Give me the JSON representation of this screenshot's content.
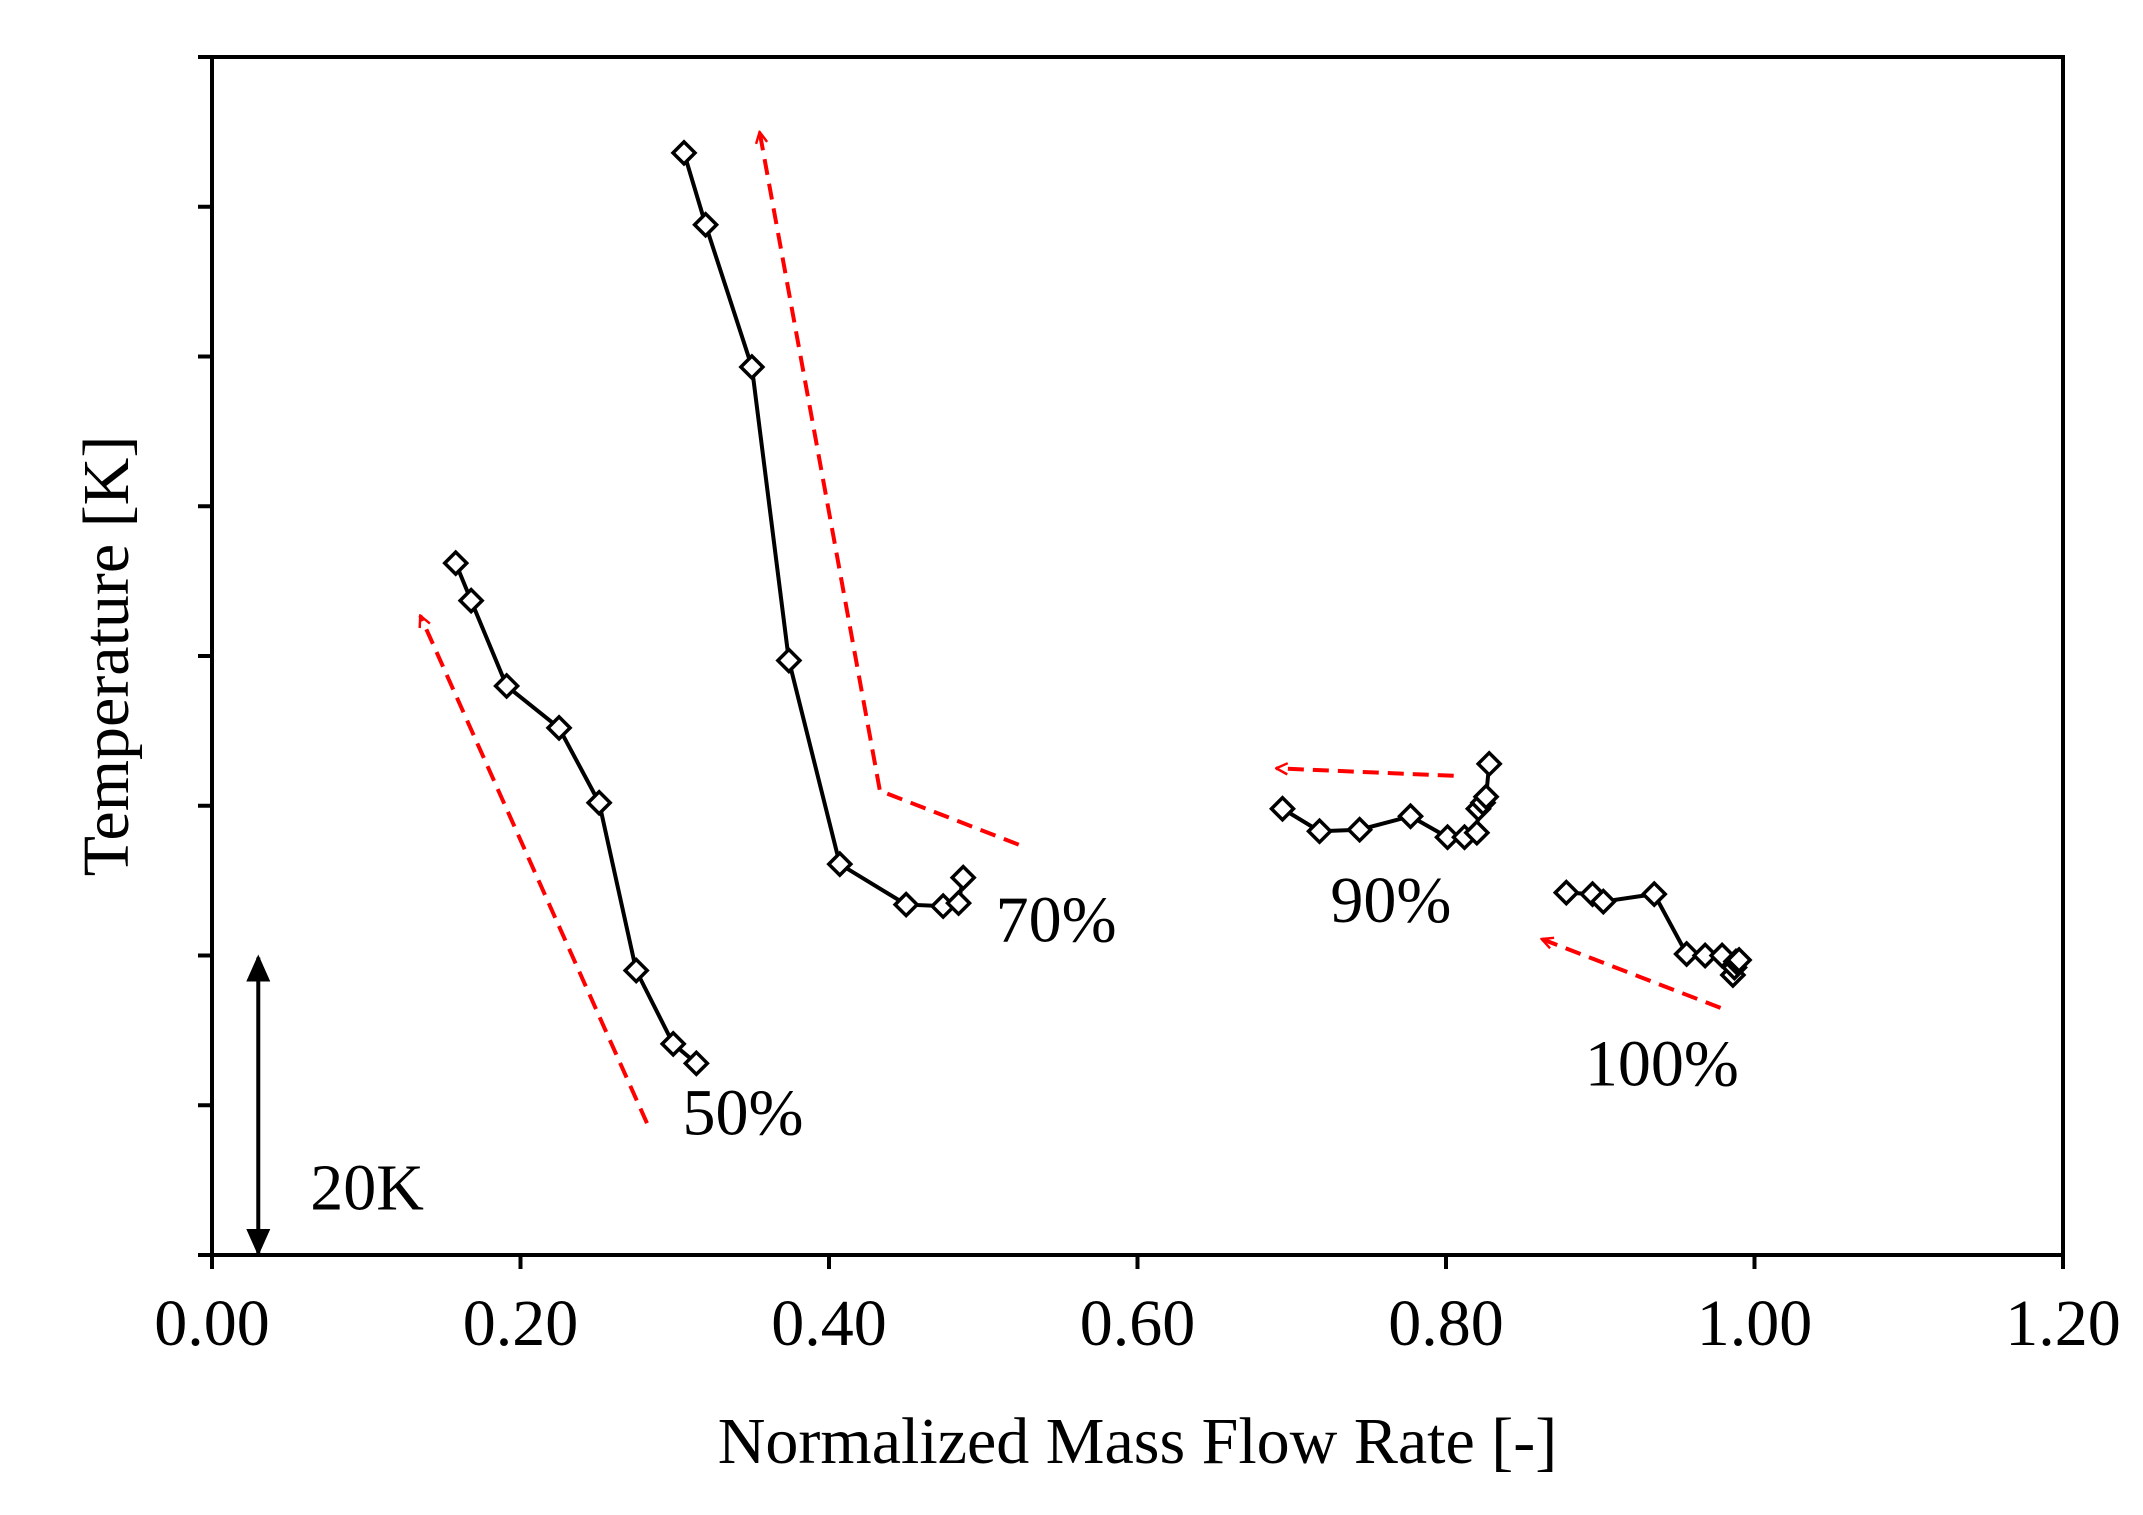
{
  "chart_data": {
    "type": "scatter",
    "xlabel": "Normalized Mass Flow Rate [-]",
    "ylabel": "Temperature [K]",
    "xlim": [
      0.0,
      1.2
    ],
    "ylim": [
      0,
      8
    ],
    "x_ticks": [
      "0.00",
      "0.20",
      "0.40",
      "0.60",
      "0.80",
      "1.00",
      "1.20"
    ],
    "x_tick_values": [
      0.0,
      0.2,
      0.4,
      0.6,
      0.8,
      1.0,
      1.2
    ],
    "y_tick_values": [
      0,
      1,
      2,
      3,
      4,
      5,
      6,
      7,
      8
    ],
    "y_tick_labels_shown": false,
    "grid": false,
    "marker": "diamond-open",
    "scale_bar": {
      "label": "20K",
      "value_units": 2,
      "from": 0,
      "to": 2,
      "x": 0.03
    },
    "series": [
      {
        "label": "50%",
        "x": [
          0.158,
          0.168,
          0.191,
          0.225,
          0.251,
          0.275,
          0.299,
          0.314
        ],
        "y": [
          4.62,
          4.37,
          3.8,
          3.52,
          3.02,
          1.9,
          1.41,
          1.28
        ],
        "label_pos": [
          0.305,
          0.95
        ],
        "arrow": {
          "from": [
            0.282,
            0.88
          ],
          "to": [
            0.135,
            4.27
          ]
        }
      },
      {
        "label": "70%",
        "x": [
          0.306,
          0.32,
          0.35,
          0.374,
          0.407,
          0.45,
          0.474,
          0.484,
          0.487
        ],
        "y": [
          7.36,
          6.88,
          5.93,
          3.97,
          2.61,
          2.34,
          2.33,
          2.35,
          2.52
        ],
        "label_pos": [
          0.508,
          2.24
        ],
        "arrow": {
          "polyline": [
            [
              0.523,
              2.74
            ],
            [
              0.433,
              3.1
            ],
            [
              0.355,
              7.5
            ]
          ]
        }
      },
      {
        "label": "90%",
        "x": [
          0.694,
          0.718,
          0.744,
          0.777,
          0.801,
          0.812,
          0.82,
          0.821,
          0.824,
          0.826,
          0.828
        ],
        "y": [
          2.98,
          2.83,
          2.84,
          2.93,
          2.79,
          2.79,
          2.82,
          2.98,
          3.02,
          3.06,
          3.28
        ],
        "label_pos": [
          0.725,
          2.37
        ],
        "arrow": {
          "from": [
            0.805,
            3.2
          ],
          "to": [
            0.69,
            3.25
          ]
        }
      },
      {
        "label": "100%",
        "x": [
          0.878,
          0.895,
          0.902,
          0.935,
          0.956,
          0.968,
          0.979,
          0.986,
          0.987,
          0.988,
          0.99
        ],
        "y": [
          2.42,
          2.41,
          2.36,
          2.41,
          2.01,
          2.0,
          2.0,
          1.87,
          1.92,
          1.96,
          1.97
        ],
        "label_pos": [
          0.89,
          1.28
        ],
        "arrow": {
          "from": [
            0.978,
            1.65
          ],
          "to": [
            0.862,
            2.11
          ]
        }
      }
    ]
  },
  "colors": {
    "axis": "#000000",
    "series_line": "#000000",
    "marker_stroke": "#000000",
    "marker_fill": "#ffffff",
    "arrow": "#ff0000"
  }
}
